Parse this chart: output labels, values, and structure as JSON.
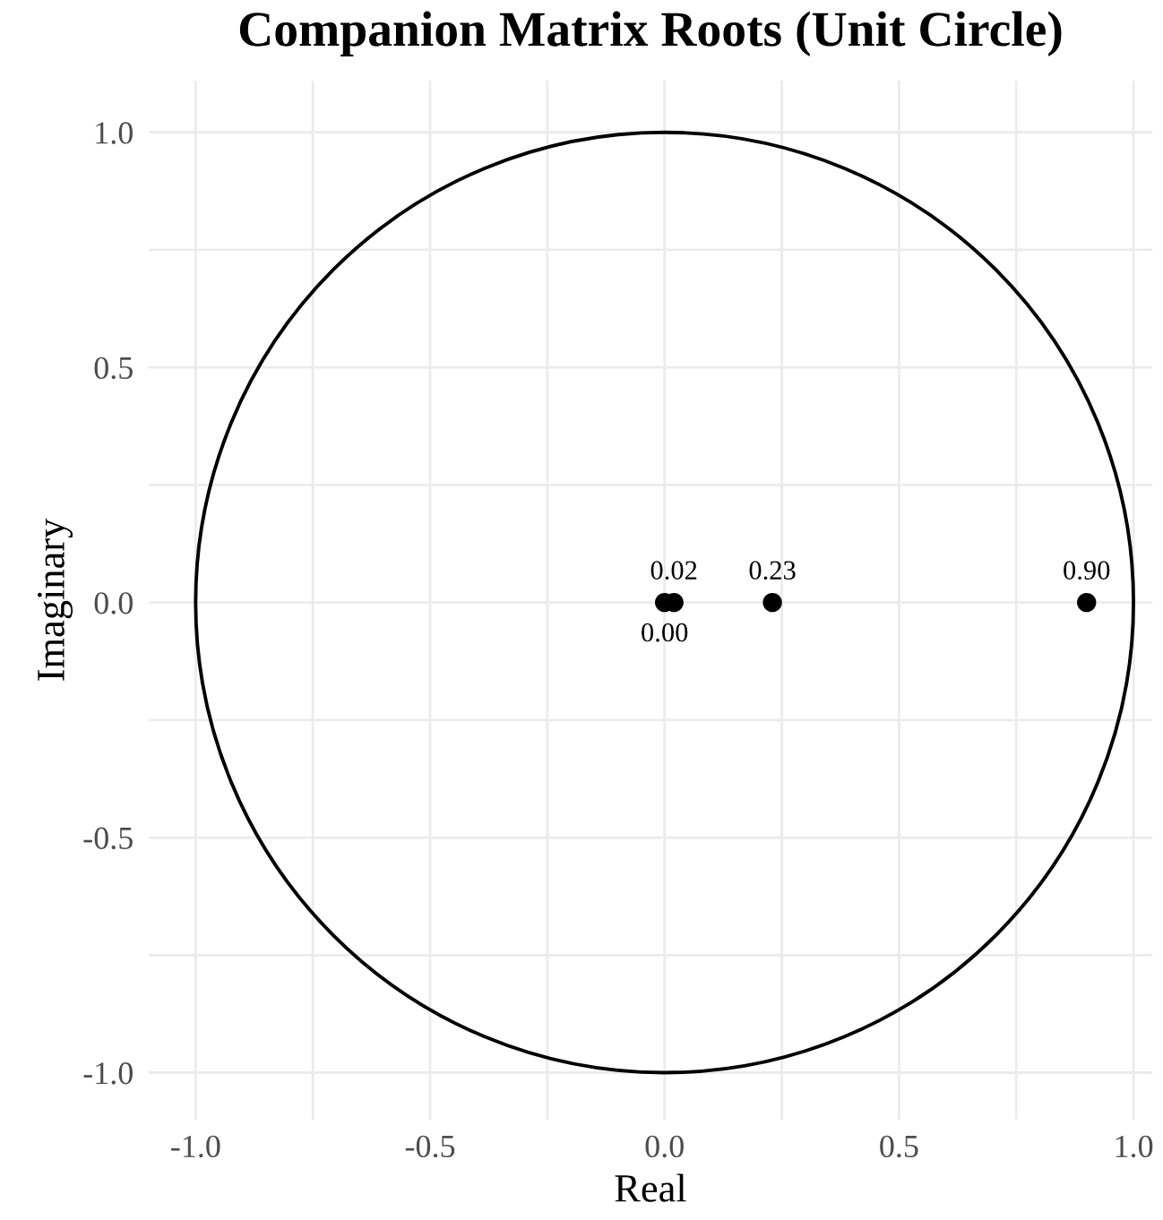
{
  "chart_data": {
    "type": "scatter",
    "title": "Companion Matrix Roots (Unit Circle)",
    "xlabel": "Real",
    "ylabel": "Imaginary",
    "series": [
      {
        "color": "#000000",
        "marker": "circle",
        "x": [
          0.0,
          0.02,
          0.23,
          0.9
        ],
        "values": [
          0,
          0,
          0,
          0
        ]
      }
    ],
    "annotations": [
      {
        "text": "0.00",
        "x": 0.0,
        "y": 0
      },
      {
        "text": "0.02",
        "x": 0.02,
        "y": 0
      },
      {
        "text": "0.23",
        "x": 0.23,
        "y": 0
      },
      {
        "text": "0.90",
        "x": 0.9,
        "y": 0
      }
    ],
    "xlim": [
      -1.1,
      1.04
    ],
    "ylim": [
      -1.1,
      1.11
    ],
    "xticks": [
      {
        "value": -1.0,
        "label": "-1.0"
      },
      {
        "value": -0.75,
        "label": null
      },
      {
        "value": -0.5,
        "label": "-0.5"
      },
      {
        "value": -0.25,
        "label": null
      },
      {
        "value": 0.0,
        "label": "0.0"
      },
      {
        "value": 0.25,
        "label": null
      },
      {
        "value": 0.5,
        "label": "0.5"
      },
      {
        "value": 0.75,
        "label": null
      },
      {
        "value": 1.0,
        "label": "1.0"
      }
    ],
    "yticks": [
      {
        "value": -1.0,
        "label": "-1.0"
      },
      {
        "value": -0.75,
        "label": null
      },
      {
        "value": -0.5,
        "label": "-0.5"
      },
      {
        "value": -0.25,
        "label": null
      },
      {
        "value": 0.0,
        "label": "0.0"
      },
      {
        "value": 0.25,
        "label": null
      },
      {
        "value": 0.5,
        "label": "0.5"
      },
      {
        "value": 0.75,
        "label": null
      },
      {
        "value": 1.0,
        "label": "1.0"
      }
    ],
    "grid": true
  }
}
